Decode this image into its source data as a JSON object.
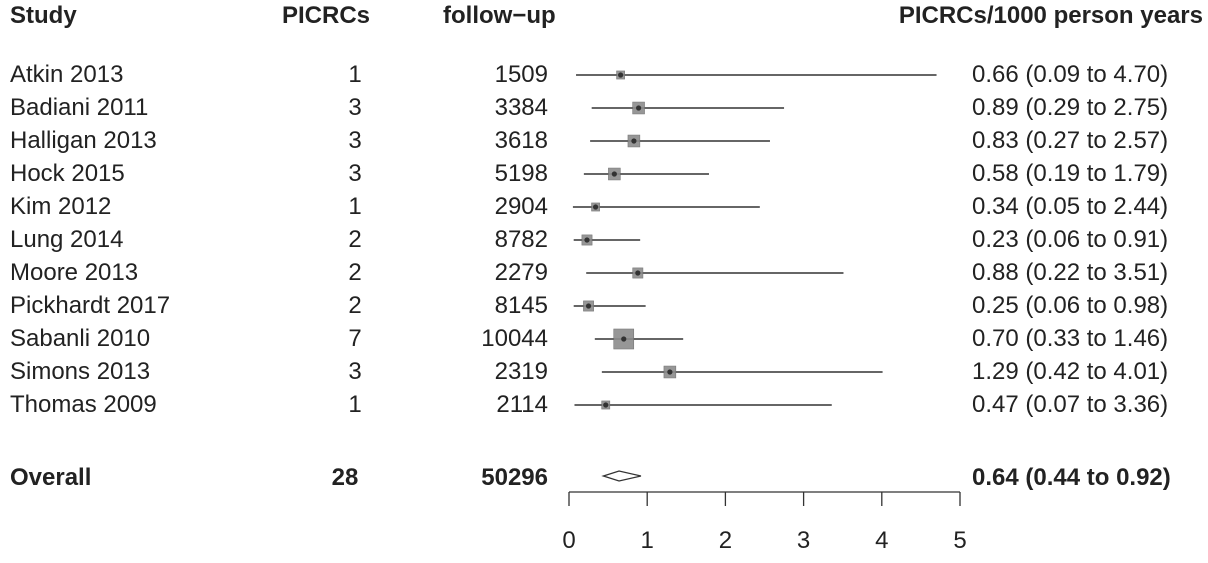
{
  "chart_data": {
    "type": "forest",
    "headers": {
      "study": "Study",
      "events": "PICRCs",
      "followup": "follow−up",
      "estimate": "PICRCs/1000 person years"
    },
    "studies": [
      {
        "name": "Atkin 2013",
        "events": "1",
        "followup": "1509",
        "est": 0.66,
        "lo": 0.09,
        "hi": 4.7,
        "ci_text": "0.66  (0.09 to 4.70)",
        "weight": 0.15
      },
      {
        "name": "Badiani 2011",
        "events": "3",
        "followup": "3384",
        "est": 0.89,
        "lo": 0.29,
        "hi": 2.75,
        "ci_text": "0.89  (0.29 to 2.75)",
        "weight": 0.42
      },
      {
        "name": "Halligan 2013",
        "events": "3",
        "followup": "3618",
        "est": 0.83,
        "lo": 0.27,
        "hi": 2.57,
        "ci_text": "0.83  (0.27 to 2.57)",
        "weight": 0.42
      },
      {
        "name": "Hock 2015",
        "events": "3",
        "followup": "5198",
        "est": 0.58,
        "lo": 0.19,
        "hi": 1.79,
        "ci_text": "0.58  (0.19 to 1.79)",
        "weight": 0.42
      },
      {
        "name": "Kim 2012",
        "events": "1",
        "followup": "2904",
        "est": 0.34,
        "lo": 0.05,
        "hi": 2.44,
        "ci_text": "0.34  (0.05 to 2.44)",
        "weight": 0.15
      },
      {
        "name": "Lung 2014",
        "events": "2",
        "followup": "8782",
        "est": 0.23,
        "lo": 0.06,
        "hi": 0.91,
        "ci_text": "0.23  (0.06 to 0.91)",
        "weight": 0.3
      },
      {
        "name": "Moore 2013",
        "events": "2",
        "followup": "2279",
        "est": 0.88,
        "lo": 0.22,
        "hi": 3.51,
        "ci_text": "0.88  (0.22 to 3.51)",
        "weight": 0.3
      },
      {
        "name": "Pickhardt 2017",
        "events": "2",
        "followup": "8145",
        "est": 0.25,
        "lo": 0.06,
        "hi": 0.98,
        "ci_text": "0.25  (0.06 to 0.98)",
        "weight": 0.3
      },
      {
        "name": "Sabanli 2010",
        "events": "7",
        "followup": "10044",
        "est": 0.7,
        "lo": 0.33,
        "hi": 1.46,
        "ci_text": "0.70  (0.33 to 1.46)",
        "weight": 1.0
      },
      {
        "name": "Simons 2013",
        "events": "3",
        "followup": "2319",
        "est": 1.29,
        "lo": 0.42,
        "hi": 4.01,
        "ci_text": "1.29  (0.42 to 4.01)",
        "weight": 0.42
      },
      {
        "name": "Thomas 2009",
        "events": "1",
        "followup": "2114",
        "est": 0.47,
        "lo": 0.07,
        "hi": 3.36,
        "ci_text": "0.47  (0.07 to 3.36)",
        "weight": 0.15
      }
    ],
    "overall": {
      "name": "Overall",
      "events": "28",
      "followup": "50296",
      "est": 0.64,
      "lo": 0.44,
      "hi": 0.92,
      "ci_text": "0.64  (0.44 to 0.92)"
    },
    "xlim": [
      0,
      5
    ],
    "xticks": [
      "0",
      "1",
      "2",
      "3",
      "4",
      "5"
    ],
    "grid": false
  }
}
